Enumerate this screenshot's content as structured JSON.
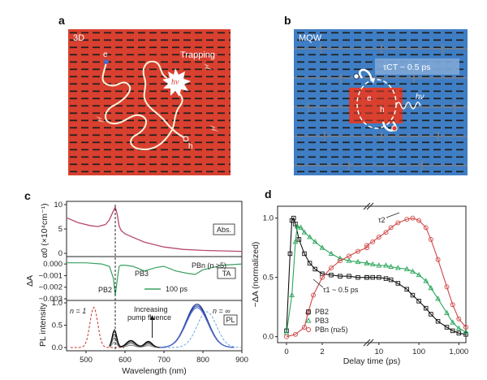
{
  "panel_a": {
    "letter": "a",
    "tag": "3D",
    "trapping": "Trapping",
    "e": "e",
    "h": "h",
    "hv": "hν",
    "colors": {
      "bg": "#d9402f",
      "dash": "#1e1e1e",
      "path": "#fff3dc"
    }
  },
  "panel_b": {
    "letter": "b",
    "tag": "MQW",
    "tau_ct": "τCT ~ 0.5 ps",
    "e": "e",
    "h": "h",
    "hv": "hν",
    "colors": {
      "bg": "#3f7ec4",
      "red": "#d9402f",
      "dash": "#1e1e1e"
    }
  },
  "panel_c": {
    "letter": "c"
  },
  "panel_d": {
    "letter": "d"
  },
  "chart_data": [
    {
      "panel": "c-top",
      "type": "line",
      "ylabel": "α0 (×10⁴cm⁻¹)",
      "ylim": [
        0,
        10
      ],
      "yticks": [
        "0",
        "5",
        "10"
      ],
      "legend": "Abs.",
      "x": [
        450,
        480,
        510,
        530,
        550,
        560,
        570,
        575,
        580,
        585,
        590,
        600,
        620,
        650,
        700,
        750,
        800,
        850,
        900
      ],
      "series": [
        {
          "values": [
            7.3,
            6.3,
            5.7,
            5.5,
            5.9,
            6.9,
            8.7,
            9.5,
            8.0,
            5.6,
            4.7,
            4.0,
            3.3,
            2.3,
            1.3,
            0.8,
            0.6,
            0.5,
            0.4
          ]
        }
      ]
    },
    {
      "panel": "c-mid",
      "type": "line",
      "ylabel": "ΔA",
      "ylim": [
        -0.003,
        0.0005
      ],
      "yticks": [
        "0.000",
        "−0.001",
        "−0.002",
        "−0.003"
      ],
      "legend": "TA",
      "labels": {
        "pb2": "PB2",
        "pb3": "PB3",
        "pbn": "PBn (n ≥5)",
        "time": "100 ps"
      },
      "x": [
        450,
        500,
        540,
        560,
        570,
        575,
        580,
        585,
        590,
        600,
        620,
        650,
        680,
        700,
        730,
        760,
        780,
        800,
        850,
        900
      ],
      "series": [
        {
          "values": [
            0.0001,
            0.0001,
            0.0,
            -0.0002,
            -0.0012,
            -0.0027,
            -0.0014,
            -0.0002,
            -0.0001,
            -0.0001,
            -0.0002,
            -0.0006,
            -0.0003,
            -0.0002,
            -0.0006,
            -0.0008,
            -0.0009,
            -0.0005,
            -0.0001,
            0.0
          ]
        }
      ]
    },
    {
      "panel": "c-bot",
      "type": "line",
      "ylabel": "PL intensity",
      "xlabel": "Wavelength (nm)",
      "xlim": [
        450,
        900
      ],
      "xticks": [
        "500",
        "600",
        "700",
        "800",
        "900"
      ],
      "ylim": [
        0,
        1.0
      ],
      "yticks": [
        "0.0",
        "0.5",
        "1.0"
      ],
      "legend": "PL",
      "labels": {
        "n1": "n = 1",
        "ninf": "n = ∞",
        "pump1": "Increasing",
        "pump2": "pump fluence"
      },
      "peak_levels": [
        0.12,
        0.22,
        0.3,
        0.36,
        0.4
      ],
      "ref_peaks": {
        "n1_nm": 520,
        "ninf_nm": 810,
        "main_nm": 785
      }
    },
    {
      "panel": "d",
      "type": "scatter",
      "ylabel": "−ΔA (normalized)",
      "xlabel": "Delay time (ps)",
      "xticks": [
        "0",
        "2",
        "10",
        "100",
        "1,000"
      ],
      "yticks": [
        "0.0",
        "0.5",
        "1.0"
      ],
      "ylim": [
        -0.05,
        1.1
      ],
      "tau1": "τ1 ~ 0.5 ps",
      "tau2": "τ2",
      "series": [
        {
          "name": "PB2",
          "color": "#111111",
          "linear_t": [
            0,
            0.2,
            0.3,
            0.4,
            0.5,
            0.7,
            1.0,
            1.3,
            1.6,
            2.0,
            2.5,
            3.0,
            3.5,
            4.0,
            4.5
          ],
          "linear_v": [
            0.05,
            0.7,
            0.98,
            1.0,
            0.95,
            0.82,
            0.7,
            0.62,
            0.57,
            0.53,
            0.52,
            0.51,
            0.51,
            0.5,
            0.5
          ],
          "log_t": [
            5,
            7,
            10,
            15,
            20,
            30,
            50,
            70,
            100,
            150,
            200,
            300,
            500,
            700,
            1000,
            1500
          ],
          "log_v": [
            0.5,
            0.5,
            0.5,
            0.49,
            0.48,
            0.45,
            0.4,
            0.35,
            0.3,
            0.24,
            0.19,
            0.13,
            0.08,
            0.05,
            0.03,
            0.02
          ]
        },
        {
          "name": "PB3",
          "color": "#2aa55a",
          "linear_t": [
            0,
            0.3,
            0.5,
            0.6,
            0.8,
            1.0,
            1.3,
            1.6,
            2.0,
            2.5,
            3.0,
            3.5,
            4.0,
            4.5
          ],
          "linear_v": [
            0.03,
            0.35,
            0.8,
            0.93,
            0.92,
            0.88,
            0.84,
            0.8,
            0.75,
            0.7,
            0.66,
            0.64,
            0.63,
            0.62
          ],
          "log_t": [
            5,
            7,
            10,
            15,
            20,
            30,
            50,
            70,
            100,
            150,
            200,
            300,
            500,
            700,
            1000,
            1500
          ],
          "log_v": [
            0.62,
            0.61,
            0.6,
            0.6,
            0.59,
            0.58,
            0.57,
            0.55,
            0.52,
            0.47,
            0.41,
            0.32,
            0.2,
            0.12,
            0.07,
            0.04
          ]
        },
        {
          "name": "PBn (n≥5)",
          "color": "#d14545",
          "linear_t": [
            0,
            0.5,
            1.0,
            1.2,
            1.5,
            2.0,
            2.5,
            3.0,
            3.5,
            4.0,
            4.5
          ],
          "linear_v": [
            0.0,
            0.02,
            0.08,
            0.2,
            0.35,
            0.5,
            0.58,
            0.64,
            0.68,
            0.72,
            0.75
          ],
          "log_t": [
            5,
            7,
            10,
            15,
            20,
            30,
            50,
            70,
            100,
            150,
            200,
            300,
            500,
            700,
            1000,
            1500
          ],
          "log_v": [
            0.77,
            0.8,
            0.84,
            0.88,
            0.92,
            0.96,
            0.99,
            1.0,
            0.98,
            0.92,
            0.82,
            0.65,
            0.42,
            0.27,
            0.15,
            0.08
          ]
        }
      ]
    }
  ]
}
